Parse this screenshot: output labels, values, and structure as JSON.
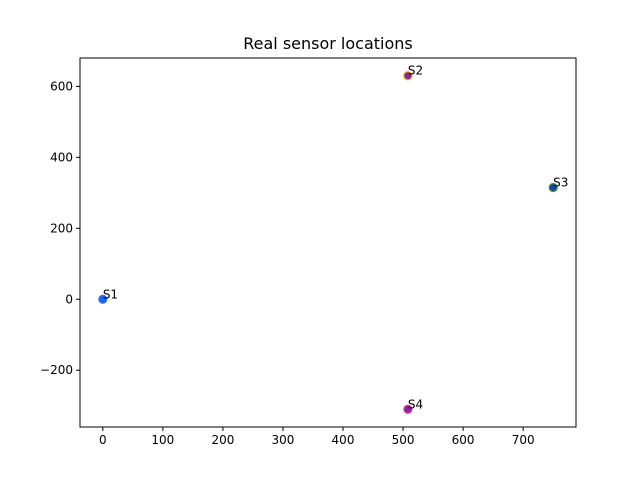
{
  "chart_data": {
    "type": "scatter",
    "title": "Real sensor locations",
    "xlabel": "",
    "ylabel": "",
    "xlim": [
      -38,
      788
    ],
    "ylim": [
      -360,
      680
    ],
    "grid": false,
    "x_ticks": [
      0,
      100,
      200,
      300,
      400,
      500,
      600,
      700
    ],
    "y_ticks": [
      -200,
      0,
      200,
      400,
      600
    ],
    "x_tick_labels": [
      "0",
      "100",
      "200",
      "300",
      "400",
      "500",
      "600",
      "700"
    ],
    "y_tick_labels": [
      "−200",
      "0",
      "200",
      "400",
      "600"
    ],
    "points": [
      {
        "label": "S1",
        "x": 0,
        "y": 0,
        "fill": "#1f5fff",
        "edge": "#3a7bd5"
      },
      {
        "label": "S2",
        "x": 508,
        "y": 630,
        "fill": "#7a2aa8",
        "edge": "#ff9900"
      },
      {
        "label": "S3",
        "x": 750,
        "y": 315,
        "fill": "#1f3fa8",
        "edge": "#2ca02c"
      },
      {
        "label": "S4",
        "x": 508,
        "y": -310,
        "fill": "#7a2aa8",
        "edge": "#ff2a8a"
      }
    ]
  }
}
